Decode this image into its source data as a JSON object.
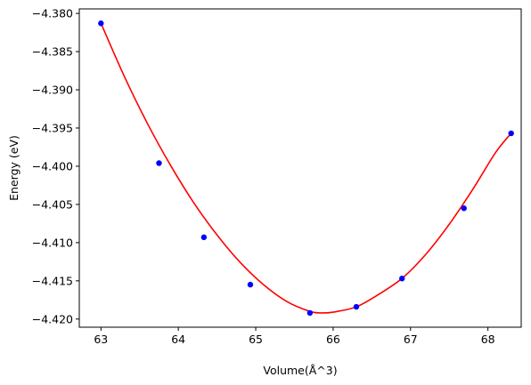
{
  "chart_data": {
    "type": "scatter",
    "title": "",
    "xlabel": "Volume(Å^3)",
    "ylabel": "Energy (eV)",
    "xlim": [
      62.72,
      68.43
    ],
    "ylim": [
      -4.42107,
      -4.37941
    ],
    "xticks": [
      63,
      64,
      65,
      66,
      67,
      68
    ],
    "xtick_labels": [
      "63",
      "64",
      "65",
      "66",
      "67",
      "68"
    ],
    "yticks": [
      -4.38,
      -4.385,
      -4.39,
      -4.395,
      -4.4,
      -4.405,
      -4.41,
      -4.415,
      -4.42
    ],
    "ytick_labels": [
      "−4.380",
      "−4.385",
      "−4.390",
      "−4.395",
      "−4.400",
      "−4.405",
      "−4.410",
      "−4.415",
      "−4.420"
    ],
    "grid": false,
    "legend": "none",
    "series": [
      {
        "kind": "points",
        "color": "#0000ff",
        "x": [
          63.0,
          63.75,
          64.33,
          64.93,
          65.7,
          66.3,
          66.89,
          67.69,
          68.3
        ],
        "y": [
          -4.3813,
          -4.3996,
          -4.4093,
          -4.4155,
          -4.4192,
          -4.4184,
          -4.4147,
          -4.4055,
          -4.3957
        ]
      },
      {
        "kind": "fit-line",
        "color": "#ff0000",
        "x": [
          63.0,
          63.3,
          63.6,
          63.9,
          64.2,
          64.5,
          64.8,
          65.1,
          65.4,
          65.7,
          65.85,
          66.0,
          66.3,
          66.6,
          66.9,
          67.2,
          67.5,
          67.8,
          68.1,
          68.3
        ],
        "y": [
          -4.3813,
          -4.3882,
          -4.3944,
          -4.3999,
          -4.4048,
          -4.409,
          -4.4126,
          -4.4155,
          -4.4177,
          -4.419,
          -4.4192,
          -4.4191,
          -4.4184,
          -4.4167,
          -4.4146,
          -4.4115,
          -4.4076,
          -4.4031,
          -4.3982,
          -4.3957
        ]
      }
    ]
  }
}
